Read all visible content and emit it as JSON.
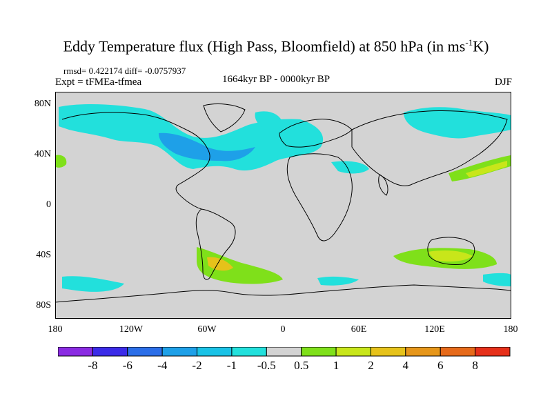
{
  "title": {
    "main": "Eddy Temperature flux (High Pass, Bloomfield) at 850 hPa (in ms",
    "sup": "-1",
    "tail": "K)"
  },
  "stats": "rmsd= 0.422174 diff= -0.0757937",
  "expt": "Expt = tFMEa-tfmea",
  "period": "1664kyr BP - 0000kyr BP",
  "season": "DJF",
  "lat_labels": [
    "80N",
    "40N",
    "0",
    "40S",
    "80S"
  ],
  "lon_labels": [
    "180",
    "120W",
    "60W",
    "0",
    "60E",
    "120E",
    "180"
  ],
  "colorbar": {
    "labels": [
      "-8",
      "-6",
      "-4",
      "-2",
      "-1",
      "-0.5",
      "0.5",
      "1",
      "2",
      "4",
      "6",
      "8"
    ],
    "colors": [
      "#8a2be2",
      "#3b2be8",
      "#2b6ee8",
      "#1ea0e8",
      "#19c2e6",
      "#22e0dc",
      "#d3d3d3",
      "#7fe01a",
      "#c8e61a",
      "#e6c21a",
      "#e6961a",
      "#e66a1a",
      "#e6301a"
    ]
  },
  "map": {
    "background": "#d3d3d3",
    "coast_color": "#000000"
  }
}
